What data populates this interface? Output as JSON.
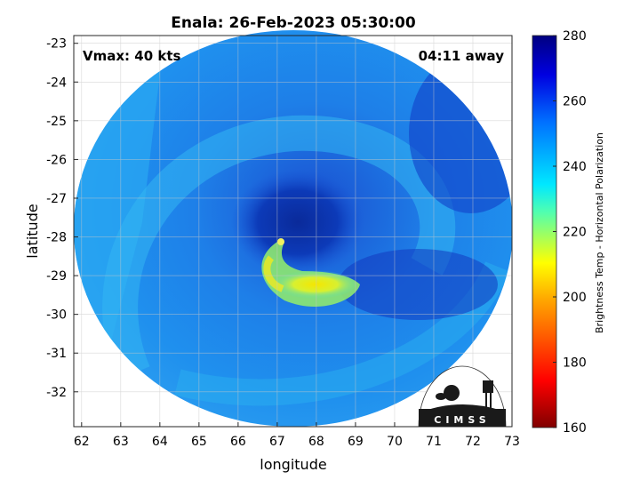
{
  "title": "Enala: 26-Feb-2023 05:30:00",
  "vmax_label": "Vmax: 40 kts",
  "time_away_label": "04:11 away",
  "xlabel": "longitude",
  "ylabel": "latitude",
  "x_ticks": [
    "62",
    "63",
    "64",
    "65",
    "66",
    "67",
    "68",
    "69",
    "70",
    "71",
    "72",
    "73"
  ],
  "y_ticks": [
    "-23",
    "-24",
    "-25",
    "-26",
    "-27",
    "-28",
    "-29",
    "-30",
    "-31",
    "-32"
  ],
  "xlim": [
    61.8,
    73
  ],
  "ylim": [
    -32.9,
    -22.8
  ],
  "grid": true,
  "colorbar": {
    "label": "Brightness Temp - Horizontal Polarization",
    "min": 160,
    "max": 280,
    "ticks": [
      "280",
      "260",
      "240",
      "220",
      "200",
      "180",
      "160"
    ]
  },
  "logo_text": "CIMSS",
  "colors": {
    "background_fill": "#1f8cf0",
    "eye_dark": "#0a2a9a",
    "warm_band": "#f5ec00",
    "cyan_band": "#23c8f0"
  }
}
